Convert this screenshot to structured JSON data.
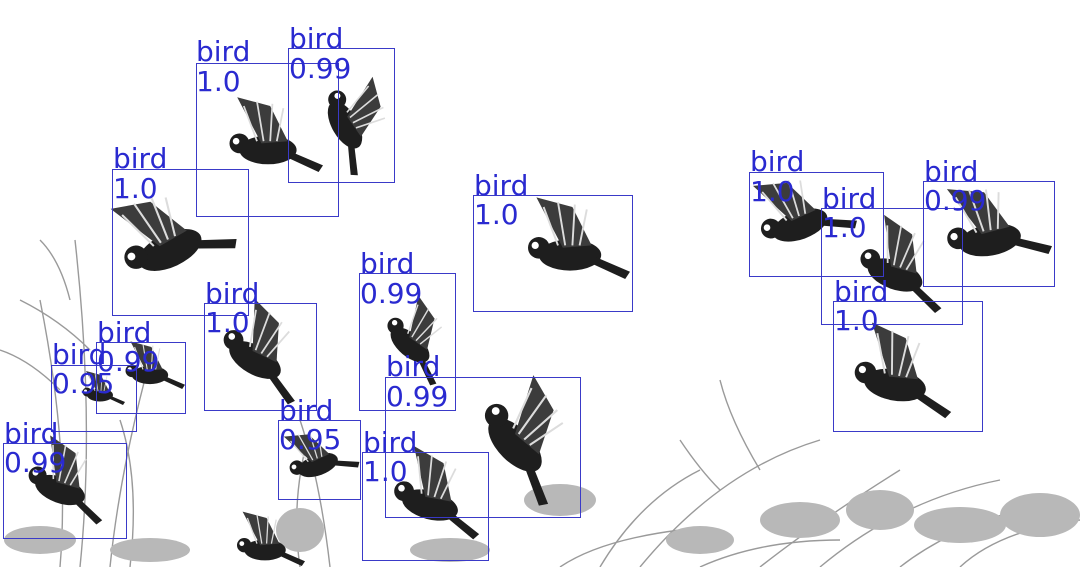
{
  "detections": [
    {
      "label": "bird",
      "score": "1.0"
    },
    {
      "label": "bird",
      "score": "0.99"
    },
    {
      "label": "bird",
      "score": "1.0"
    },
    {
      "label": "bird",
      "score": "1.0"
    },
    {
      "label": "bird",
      "score": "0.99"
    },
    {
      "label": "bird",
      "score": "0.95"
    },
    {
      "label": "bird",
      "score": "0.99"
    },
    {
      "label": "bird",
      "score": "0.95"
    },
    {
      "label": "bird",
      "score": "0.99"
    },
    {
      "label": "bird",
      "score": "0.99"
    },
    {
      "label": "bird",
      "score": "1.0"
    },
    {
      "label": "bird",
      "score": "1.0"
    },
    {
      "label": "bird",
      "score": "1.0"
    },
    {
      "label": "bird",
      "score": "1.0"
    },
    {
      "label": "bird",
      "score": "0.99"
    },
    {
      "label": "bird",
      "score": "1.0"
    }
  ],
  "colors": {
    "box": "#3a3ac8",
    "label": "#2a2ad0",
    "bird": "#1e1e1e",
    "grass": "#9a9a9a"
  }
}
